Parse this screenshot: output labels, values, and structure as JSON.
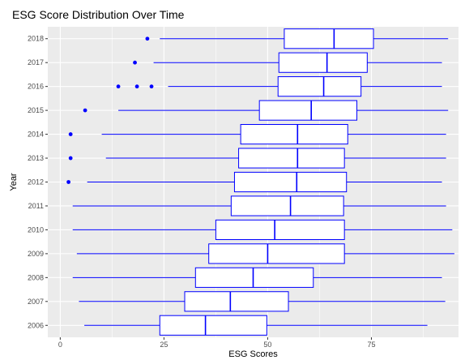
{
  "chart_data": {
    "type": "boxplot",
    "orientation": "horizontal",
    "title": "ESG Score Distribution Over Time",
    "xlabel": "ESG Scores",
    "ylabel": "Year",
    "xlim": [
      -3,
      96
    ],
    "xticks": [
      0,
      25,
      50,
      75
    ],
    "grid": true,
    "legend": "none",
    "colors": {
      "panel": "#ebebeb",
      "grid": "#ffffff",
      "box": "#0000ff",
      "fill": "#ffffff"
    },
    "categories": [
      "2006",
      "2007",
      "2008",
      "2009",
      "2010",
      "2011",
      "2012",
      "2013",
      "2014",
      "2015",
      "2016",
      "2017",
      "2018"
    ],
    "boxes": [
      {
        "year": "2006",
        "whisker_low": 5.8,
        "q1": 24,
        "median": 35,
        "q3": 49.8,
        "whisker_high": 88.5,
        "outliers": []
      },
      {
        "year": "2007",
        "whisker_low": 4.5,
        "q1": 30,
        "median": 41,
        "q3": 55,
        "whisker_high": 92.8,
        "outliers": []
      },
      {
        "year": "2008",
        "whisker_low": 3,
        "q1": 32.6,
        "median": 46.5,
        "q3": 61,
        "whisker_high": 92,
        "outliers": []
      },
      {
        "year": "2009",
        "whisker_low": 4,
        "q1": 35.8,
        "median": 50,
        "q3": 68.5,
        "whisker_high": 95,
        "outliers": []
      },
      {
        "year": "2010",
        "whisker_low": 3,
        "q1": 37.5,
        "median": 51.7,
        "q3": 68.5,
        "whisker_high": 94.5,
        "outliers": []
      },
      {
        "year": "2011",
        "whisker_low": 3,
        "q1": 41.2,
        "median": 55.5,
        "q3": 68.3,
        "whisker_high": 93,
        "outliers": []
      },
      {
        "year": "2012",
        "whisker_low": 6.5,
        "q1": 42,
        "median": 57,
        "q3": 69,
        "whisker_high": 92,
        "outliers": [
          2
        ]
      },
      {
        "year": "2013",
        "whisker_low": 11,
        "q1": 43,
        "median": 57.2,
        "q3": 68.5,
        "whisker_high": 93,
        "outliers": [
          2.5
        ]
      },
      {
        "year": "2014",
        "whisker_low": 10,
        "q1": 43.5,
        "median": 57.2,
        "q3": 69.3,
        "whisker_high": 93,
        "outliers": [
          2.5
        ]
      },
      {
        "year": "2015",
        "whisker_low": 14,
        "q1": 48,
        "median": 60.5,
        "q3": 71.5,
        "whisker_high": 93.5,
        "outliers": [
          6
        ]
      },
      {
        "year": "2016",
        "whisker_low": 26,
        "q1": 52.5,
        "median": 63.5,
        "q3": 72.5,
        "whisker_high": 92,
        "outliers": [
          14,
          18.5,
          22
        ]
      },
      {
        "year": "2017",
        "whisker_low": 22.5,
        "q1": 52.7,
        "median": 64.3,
        "q3": 74,
        "whisker_high": 92,
        "outliers": [
          18
        ]
      },
      {
        "year": "2018",
        "whisker_low": 24,
        "q1": 54,
        "median": 66,
        "q3": 75.5,
        "whisker_high": 93.5,
        "outliers": [
          21
        ]
      }
    ]
  }
}
